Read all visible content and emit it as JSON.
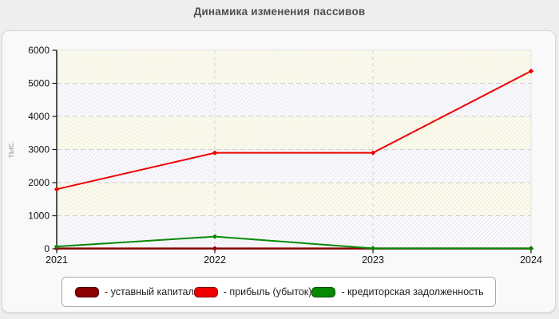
{
  "page": {
    "title": "Динамика изменения пассивов",
    "background_color": "#eeeeef",
    "panel_color": "#f9f9f9"
  },
  "chart_data": {
    "type": "line",
    "title": "Динамика изменения пассивов",
    "xlabel": "",
    "ylabel": "тыс.",
    "x": [
      "2021",
      "2022",
      "2023",
      "2024"
    ],
    "y_ticks": [
      0,
      1000,
      2000,
      3000,
      4000,
      5000,
      6000
    ],
    "ylim": [
      0,
      6000
    ],
    "grid": {
      "horizontal": "dashed gray at each 1000",
      "vertical_dashed_at": [
        "2022",
        "2023"
      ],
      "band_fill": "alternating hatched bands",
      "band_colors": {
        "warm": "#fdfdf1",
        "warm_line": "#efecd9",
        "cool": "#fbfbfe",
        "cool_line": "#e7e7f1"
      }
    },
    "legend_position": "bottom",
    "axis_color": "#1c1c1c",
    "series": [
      {
        "name": "уставный капитал",
        "legend_label": "- уставный капитал",
        "color": "#8b0000",
        "values": [
          10,
          10,
          10,
          10
        ]
      },
      {
        "name": "прибыль (убыток)",
        "legend_label": "- прибыль (убыток)",
        "color": "#ee0000",
        "values": [
          1800,
          2900,
          2900,
          5370
        ]
      },
      {
        "name": "кредиторская задолженность",
        "legend_label": "- кредиторская задолженность",
        "color": "#068a06",
        "values": [
          70,
          370,
          15,
          15
        ]
      }
    ]
  }
}
